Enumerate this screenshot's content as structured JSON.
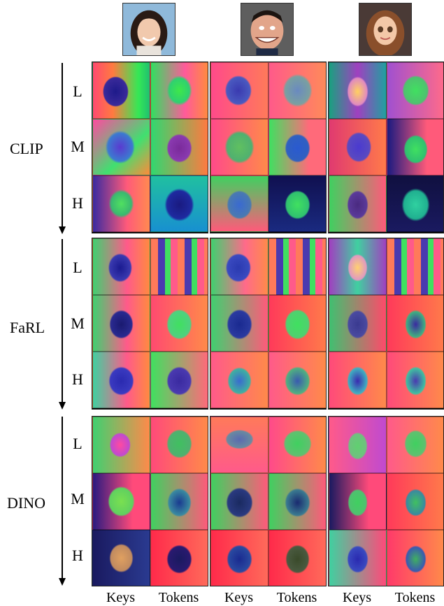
{
  "rows": {
    "clip": {
      "label": "CLIP",
      "levels": [
        "L",
        "M",
        "H"
      ]
    },
    "farl": {
      "label": "FaRL",
      "levels": [
        "L",
        "M",
        "H"
      ]
    },
    "dino": {
      "label": "DINO",
      "levels": [
        "L",
        "M",
        "H"
      ]
    }
  },
  "columns": [
    "Keys",
    "Tokens",
    "Keys",
    "Tokens",
    "Keys",
    "Tokens"
  ]
}
